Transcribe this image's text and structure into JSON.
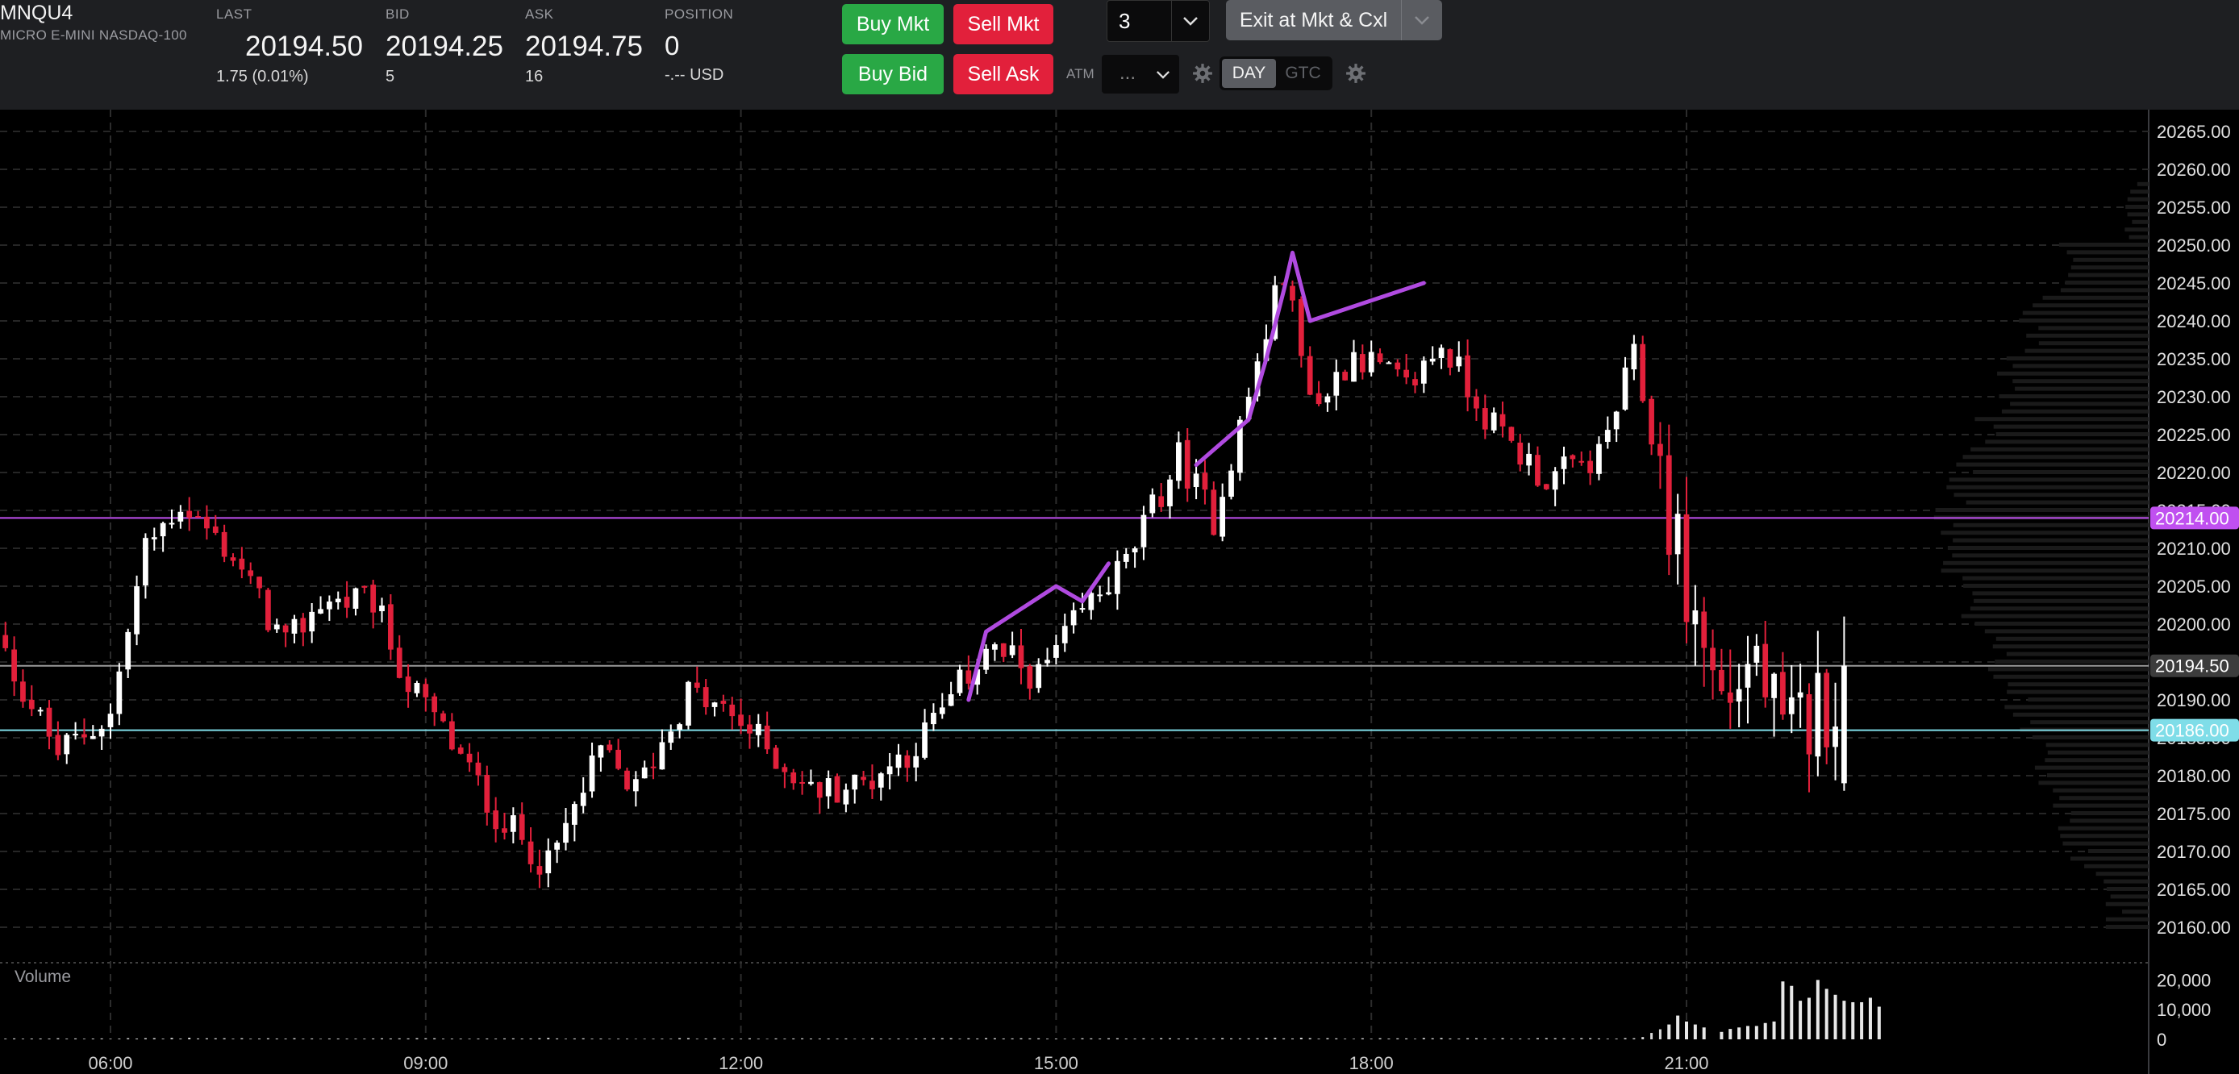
{
  "instrument": {
    "symbol": "MNQU4",
    "description": "MICRO E-MINI NASDAQ-100"
  },
  "quotes": {
    "last": {
      "label": "LAST",
      "value": "20194.50",
      "change": "1.75 (0.01%)"
    },
    "bid": {
      "label": "BID",
      "value": "20194.25",
      "size": "5"
    },
    "ask": {
      "label": "ASK",
      "value": "20194.75",
      "size": "16"
    },
    "position": {
      "label": "POSITION",
      "value": "0",
      "pnl": "-.-- USD"
    }
  },
  "order_entry": {
    "buy_mkt": "Buy Mkt",
    "sell_mkt": "Sell Mkt",
    "buy_bid": "Buy Bid",
    "sell_ask": "Sell Ask",
    "quantity": "3",
    "exit_label": "Exit at Mkt & Cxl",
    "atm_label": "ATM",
    "atm_value": "...",
    "tif_day": "DAY",
    "tif_gtc": "GTC",
    "tif_selected": "DAY"
  },
  "colors": {
    "up": "#ffffff",
    "down": "#e2203b",
    "drawing": "#b04ae0",
    "level_purple": "#c050f0",
    "level_gray": "#9a9a9a",
    "level_cyan": "#7fdde8",
    "green_button": "#29a845",
    "red_button": "#e2203b"
  },
  "chart_data": {
    "type": "candlestick",
    "x_axis": {
      "ticks": [
        "06:00",
        "09:00",
        "12:00",
        "15:00",
        "18:00",
        "21:00"
      ]
    },
    "y_axis": {
      "range": [
        20156,
        20267
      ],
      "ticks": [
        "20160.00",
        "20165.00",
        "20170.00",
        "20175.00",
        "20180.00",
        "20185.00",
        "20190.00",
        "20195.00",
        "20200.00",
        "20205.00",
        "20210.00",
        "20215.00",
        "20220.00",
        "20225.00",
        "20230.00",
        "20235.00",
        "20240.00",
        "20245.00",
        "20250.00",
        "20255.00",
        "20260.00",
        "20265.00"
      ]
    },
    "price_labels": [
      {
        "value": 20214.0,
        "text": "20214.00",
        "color": "purple"
      },
      {
        "value": 20194.5,
        "text": "20194.50",
        "color": "gray"
      },
      {
        "value": 20186.0,
        "text": "20186.00",
        "color": "cyan"
      }
    ],
    "volume_panel": {
      "label": "Volume",
      "ticks": [
        "20,000",
        "10,000",
        "0"
      ],
      "max": 22000
    },
    "anchors": [
      [
        "04:50",
        20200,
        20165,
        180
      ],
      [
        "05:30",
        20183,
        20181,
        350
      ],
      [
        "06:00",
        20188,
        20182,
        300
      ],
      [
        "06:20",
        20210,
        20204,
        280
      ],
      [
        "06:40",
        20216,
        20212,
        400
      ],
      [
        "07:10",
        20209,
        20205,
        300
      ],
      [
        "07:40",
        20197,
        20201,
        280
      ],
      [
        "08:00",
        20203,
        20205,
        250
      ],
      [
        "08:30",
        20203,
        20206,
        250
      ],
      [
        "08:50",
        20192,
        20190,
        300
      ],
      [
        "09:10",
        20186,
        20180,
        280
      ],
      [
        "09:40",
        20175,
        20174,
        300
      ],
      [
        "10:10",
        20168,
        20166,
        350
      ],
      [
        "10:40",
        20183,
        20182,
        280
      ],
      [
        "11:00",
        20178,
        20179,
        250
      ],
      [
        "11:30",
        20191,
        20193,
        300
      ],
      [
        "12:00",
        20187,
        20183,
        250
      ],
      [
        "12:40",
        20178,
        20176,
        250
      ],
      [
        "13:10",
        20179,
        20177,
        280
      ],
      [
        "13:40",
        20184,
        20187,
        250
      ],
      [
        "14:00",
        20190,
        20190,
        300
      ],
      [
        "14:20",
        20197,
        20199,
        300
      ],
      [
        "14:50",
        20193,
        20196,
        250
      ],
      [
        "15:20",
        20203,
        20199,
        300
      ],
      [
        "15:40",
        20208,
        20211,
        300
      ],
      [
        "16:10",
        20222,
        20221,
        350
      ],
      [
        "16:30",
        20214,
        20218,
        300
      ],
      [
        "16:50",
        20230,
        20227,
        400
      ],
      [
        "17:10",
        20247,
        20249,
        500
      ],
      [
        "17:20",
        20235,
        20239,
        400
      ],
      [
        "17:30",
        20229,
        20228,
        350
      ],
      [
        "17:50",
        20236,
        20234,
        300
      ],
      [
        "18:20",
        20231,
        20233,
        300
      ],
      [
        "18:40",
        20237,
        20243,
        350
      ],
      [
        "19:10",
        20226,
        20227,
        300
      ],
      [
        "19:40",
        20219,
        20217,
        300
      ],
      [
        "20:10",
        20222,
        20223,
        280
      ],
      [
        "20:30",
        20235,
        20232,
        350
      ],
      [
        "20:45",
        20220,
        20217,
        3000
      ],
      [
        "21:00",
        20204,
        20202,
        2500
      ],
      [
        "21:20",
        20190,
        20192,
        2500
      ],
      [
        "21:40",
        20196,
        20194,
        3000
      ],
      [
        "21:55",
        20184,
        20180,
        8000
      ],
      [
        "22:15",
        20189,
        20186,
        15000
      ],
      [
        "22:30",
        20192,
        20194,
        14000
      ]
    ],
    "volume_highlights": [
      [
        "20:50",
        5000
      ],
      [
        "20:55",
        8000
      ],
      [
        "21:00",
        6000
      ],
      [
        "21:05",
        5000
      ],
      [
        "21:10",
        4000
      ],
      [
        "21:20",
        2500
      ],
      [
        "21:25",
        3500
      ],
      [
        "21:30",
        4000
      ],
      [
        "21:35",
        4500
      ],
      [
        "21:40",
        4500
      ],
      [
        "21:45",
        5500
      ],
      [
        "21:50",
        6000
      ],
      [
        "21:55",
        19500
      ],
      [
        "22:00",
        18000
      ],
      [
        "22:05",
        13000
      ],
      [
        "22:10",
        14000
      ],
      [
        "22:15",
        20000
      ],
      [
        "22:20",
        17000
      ],
      [
        "22:25",
        15000
      ],
      [
        "22:30",
        13000
      ],
      [
        "22:35",
        12500
      ],
      [
        "22:40",
        12500
      ],
      [
        "22:45",
        14000
      ],
      [
        "22:50",
        11000
      ]
    ],
    "drawings": [
      {
        "points": [
          [
            "14:10",
            20190
          ],
          [
            "14:20",
            20199
          ],
          [
            "15:00",
            20205
          ],
          [
            "15:15",
            20203
          ],
          [
            "15:30",
            20208
          ]
        ]
      },
      {
        "points": [
          [
            "16:20",
            20221
          ],
          [
            "16:50",
            20227
          ],
          [
            "17:00",
            20235
          ],
          [
            "17:10",
            20244
          ],
          [
            "17:15",
            20249
          ],
          [
            "17:25",
            20240
          ],
          [
            "18:30",
            20245
          ]
        ]
      }
    ]
  }
}
